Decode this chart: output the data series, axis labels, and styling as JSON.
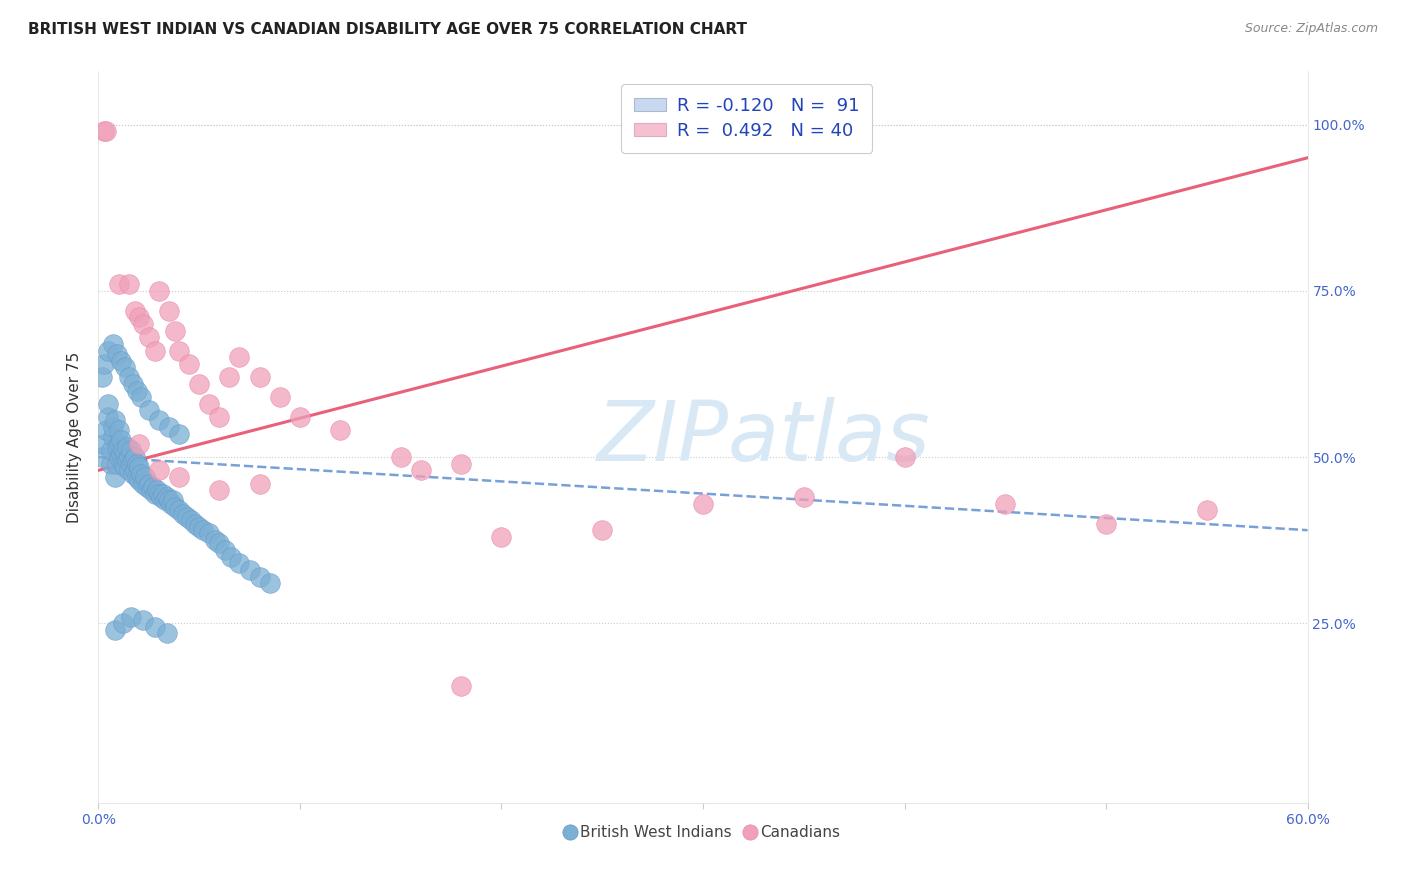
{
  "title": "BRITISH WEST INDIAN VS CANADIAN DISABILITY AGE OVER 75 CORRELATION CHART",
  "source": "Source: ZipAtlas.com",
  "ylabel": "Disability Age Over 75",
  "xlim": [
    0.0,
    0.6
  ],
  "ylim": [
    -0.02,
    1.08
  ],
  "xtick_vals": [
    0.0,
    0.1,
    0.2,
    0.3,
    0.4,
    0.5,
    0.6
  ],
  "xtick_labels": [
    "0.0%",
    "",
    "",
    "",
    "",
    "",
    "60.0%"
  ],
  "ytick_vals": [
    0.25,
    0.5,
    0.75,
    1.0
  ],
  "ytick_labels": [
    "25.0%",
    "50.0%",
    "75.0%",
    "100.0%"
  ],
  "legend_line1": "R = -0.120   N =  91",
  "legend_line2": "R =  0.492   N = 40",
  "blue_scatter_color": "#7bafd4",
  "blue_scatter_edge": "#6699cc",
  "pink_scatter_color": "#f0a0b8",
  "pink_scatter_edge": "#e888aa",
  "blue_line_color": "#5588cc",
  "blue_line_dash": true,
  "pink_line_color": "#e8607a",
  "pink_line_solid": true,
  "legend_blue_fill": "#c8d8f0",
  "legend_pink_fill": "#f5c0d0",
  "watermark_color": "#d8e8f5",
  "watermark_text": "ZIPatlas",
  "title_fontsize": 11,
  "source_fontsize": 9,
  "tick_fontsize": 10,
  "legend_fontsize": 13,
  "ylabel_fontsize": 11,
  "bwi_x": [
    0.002,
    0.003,
    0.004,
    0.005,
    0.005,
    0.006,
    0.006,
    0.007,
    0.007,
    0.008,
    0.008,
    0.009,
    0.009,
    0.01,
    0.01,
    0.01,
    0.011,
    0.011,
    0.012,
    0.012,
    0.013,
    0.013,
    0.014,
    0.014,
    0.015,
    0.015,
    0.016,
    0.016,
    0.017,
    0.017,
    0.018,
    0.018,
    0.019,
    0.019,
    0.02,
    0.02,
    0.021,
    0.022,
    0.023,
    0.024,
    0.025,
    0.026,
    0.027,
    0.028,
    0.029,
    0.03,
    0.031,
    0.032,
    0.033,
    0.034,
    0.035,
    0.036,
    0.037,
    0.038,
    0.04,
    0.042,
    0.044,
    0.046,
    0.048,
    0.05,
    0.052,
    0.055,
    0.058,
    0.06,
    0.063,
    0.066,
    0.07,
    0.075,
    0.08,
    0.085,
    0.002,
    0.003,
    0.005,
    0.007,
    0.009,
    0.011,
    0.013,
    0.015,
    0.017,
    0.019,
    0.021,
    0.025,
    0.03,
    0.035,
    0.04,
    0.008,
    0.012,
    0.016,
    0.022,
    0.028,
    0.034
  ],
  "bwi_y": [
    0.5,
    0.52,
    0.54,
    0.56,
    0.58,
    0.49,
    0.51,
    0.53,
    0.545,
    0.555,
    0.47,
    0.49,
    0.515,
    0.5,
    0.52,
    0.54,
    0.505,
    0.525,
    0.49,
    0.51,
    0.485,
    0.505,
    0.495,
    0.515,
    0.48,
    0.5,
    0.49,
    0.51,
    0.475,
    0.495,
    0.48,
    0.5,
    0.47,
    0.49,
    0.465,
    0.485,
    0.475,
    0.46,
    0.47,
    0.455,
    0.46,
    0.45,
    0.455,
    0.445,
    0.45,
    0.445,
    0.44,
    0.445,
    0.435,
    0.44,
    0.435,
    0.43,
    0.435,
    0.425,
    0.42,
    0.415,
    0.41,
    0.405,
    0.4,
    0.395,
    0.39,
    0.385,
    0.375,
    0.37,
    0.36,
    0.35,
    0.34,
    0.33,
    0.32,
    0.31,
    0.62,
    0.64,
    0.66,
    0.67,
    0.655,
    0.645,
    0.635,
    0.62,
    0.61,
    0.6,
    0.59,
    0.57,
    0.555,
    0.545,
    0.535,
    0.24,
    0.25,
    0.26,
    0.255,
    0.245,
    0.235
  ],
  "can_x": [
    0.003,
    0.004,
    0.01,
    0.015,
    0.018,
    0.02,
    0.022,
    0.025,
    0.028,
    0.03,
    0.035,
    0.038,
    0.04,
    0.045,
    0.05,
    0.055,
    0.06,
    0.065,
    0.07,
    0.08,
    0.09,
    0.1,
    0.12,
    0.15,
    0.16,
    0.18,
    0.2,
    0.25,
    0.3,
    0.35,
    0.4,
    0.45,
    0.5,
    0.55,
    0.02,
    0.03,
    0.04,
    0.06,
    0.08,
    0.18
  ],
  "can_y": [
    0.99,
    0.99,
    0.76,
    0.76,
    0.72,
    0.71,
    0.7,
    0.68,
    0.66,
    0.75,
    0.72,
    0.69,
    0.66,
    0.64,
    0.61,
    0.58,
    0.56,
    0.62,
    0.65,
    0.62,
    0.59,
    0.56,
    0.54,
    0.5,
    0.48,
    0.49,
    0.38,
    0.39,
    0.43,
    0.44,
    0.5,
    0.43,
    0.4,
    0.42,
    0.52,
    0.48,
    0.47,
    0.45,
    0.46,
    0.155
  ],
  "bwi_line_x": [
    0.0,
    0.6
  ],
  "bwi_line_y": [
    0.5,
    0.39
  ],
  "can_line_x": [
    0.0,
    0.6
  ],
  "can_line_y": [
    0.48,
    0.95
  ]
}
